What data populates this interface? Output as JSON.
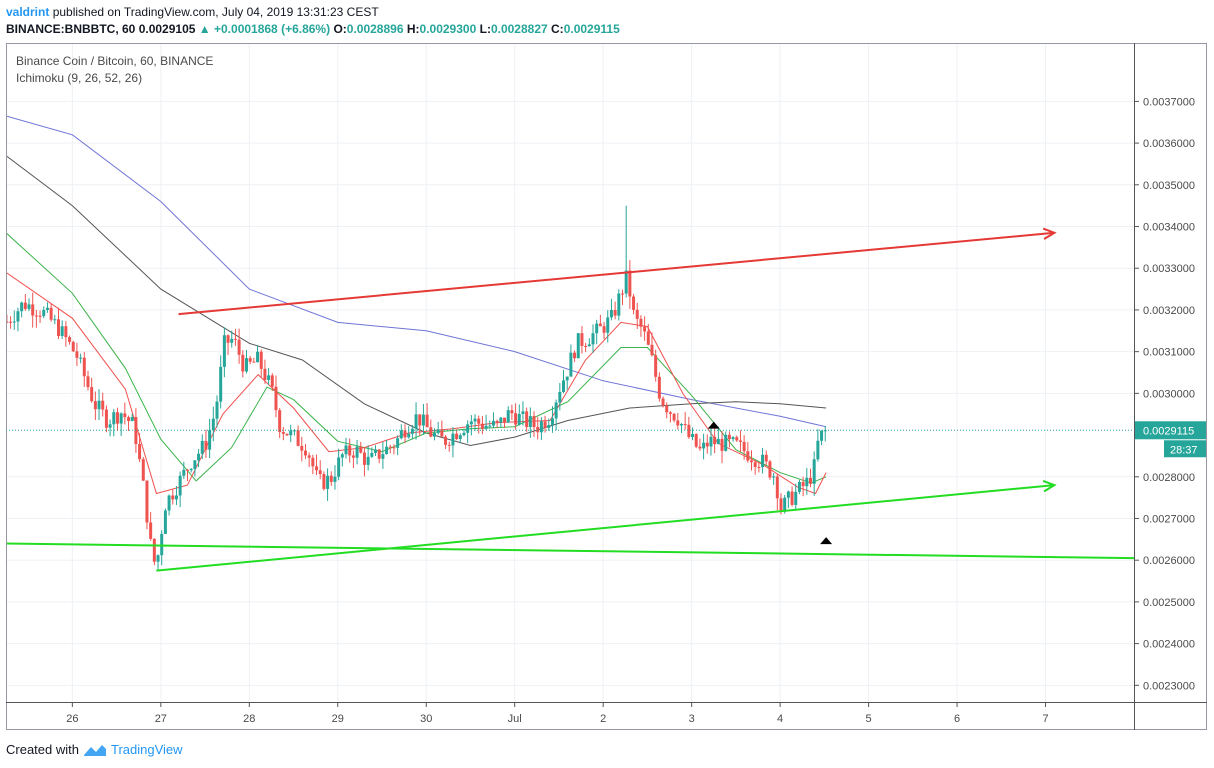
{
  "header": {
    "author": "valdrint",
    "published_text": "published on TradingView.com, July 04, 2019 13:31:23 CEST",
    "symbol": "BINANCE:BNBBTC, 60",
    "last": "0.0029105",
    "change": "+0.0001868 (+6.86%)",
    "o_label": "O:",
    "o_val": "0.0028896",
    "h_label": "H:",
    "h_val": "0.0029300",
    "l_label": "L:",
    "l_val": "0.0028827",
    "c_label": "C:",
    "c_val": "0.0029115"
  },
  "legend": {
    "title": "Binance Coin / Bitcoin, 60, BINANCE",
    "indicator": "Ichimoku (9, 26, 52, 26)"
  },
  "footer": {
    "created_with": "Created with",
    "brand": "TradingView"
  },
  "colors": {
    "up": "#26a69a",
    "down": "#ef5350",
    "red_line": "#e53935",
    "green_line": "#22dd22",
    "ma_blue": "#6f74d6",
    "ma_gray": "#555555",
    "ma_green": "#3bb34a",
    "ma_red": "#f0504e",
    "price_tag": "#26a69a"
  },
  "chart_data": {
    "type": "candlestick",
    "price_label": "0.0029115",
    "countdown": "28:37",
    "y_ticks": [
      "0.0037000",
      "0.0036000",
      "0.0035000",
      "0.0034000",
      "0.0033000",
      "0.0032000",
      "0.0031000",
      "0.0030000",
      "0.0028000",
      "0.0027000",
      "0.0026000",
      "0.0025000",
      "0.0024000",
      "0.0023000"
    ],
    "y_range": [
      0.00226,
      0.00384
    ],
    "x_ticks": [
      {
        "label": "26",
        "day": 0
      },
      {
        "label": "27",
        "day": 1
      },
      {
        "label": "28",
        "day": 2
      },
      {
        "label": "29",
        "day": 3
      },
      {
        "label": "30",
        "day": 4
      },
      {
        "label": "Jul",
        "day": 5
      },
      {
        "label": "2",
        "day": 6
      },
      {
        "label": "3",
        "day": 7
      },
      {
        "label": "4",
        "day": 8
      },
      {
        "label": "5",
        "day": 9
      },
      {
        "label": "6",
        "day": 10
      },
      {
        "label": "7",
        "day": 11
      }
    ],
    "x_range_days": [
      -0.75,
      12.0
    ],
    "closes": [
      [
        -0.74,
        0.003172
      ],
      [
        -0.55,
        0.003216
      ],
      [
        -0.35,
        0.003198
      ],
      [
        -0.15,
        0.003155
      ],
      [
        0.05,
        0.00309
      ],
      [
        0.25,
        0.002975
      ],
      [
        0.4,
        0.002935
      ],
      [
        0.55,
        0.002955
      ],
      [
        0.7,
        0.00292
      ],
      [
        0.82,
        0.00275
      ],
      [
        0.9,
        0.00261
      ],
      [
        0.95,
        0.002585
      ],
      [
        1.05,
        0.002735
      ],
      [
        1.2,
        0.002785
      ],
      [
        1.35,
        0.00284
      ],
      [
        1.5,
        0.002875
      ],
      [
        1.62,
        0.00296
      ],
      [
        1.72,
        0.00312
      ],
      [
        1.82,
        0.00313
      ],
      [
        1.95,
        0.00306
      ],
      [
        2.1,
        0.00308
      ],
      [
        2.25,
        0.00301
      ],
      [
        2.35,
        0.00292
      ],
      [
        2.5,
        0.002895
      ],
      [
        2.65,
        0.00287
      ],
      [
        2.78,
        0.002785
      ],
      [
        2.92,
        0.002795
      ],
      [
        3.05,
        0.00285
      ],
      [
        3.2,
        0.002865
      ],
      [
        3.35,
        0.002835
      ],
      [
        3.5,
        0.00286
      ],
      [
        3.65,
        0.00288
      ],
      [
        3.75,
        0.002915
      ],
      [
        3.9,
        0.002945
      ],
      [
        4.05,
        0.002905
      ],
      [
        4.2,
        0.002885
      ],
      [
        4.35,
        0.00291
      ],
      [
        4.5,
        0.002935
      ],
      [
        4.65,
        0.002925
      ],
      [
        4.8,
        0.00292
      ],
      [
        4.95,
        0.002955
      ],
      [
        5.1,
        0.002935
      ],
      [
        5.25,
        0.00292
      ],
      [
        5.4,
        0.002945
      ],
      [
        5.5,
        0.00301
      ],
      [
        5.6,
        0.00306
      ],
      [
        5.7,
        0.00312
      ],
      [
        5.8,
        0.00313
      ],
      [
        5.95,
        0.00315
      ],
      [
        6.1,
        0.00318
      ],
      [
        6.2,
        0.00324
      ],
      [
        6.27,
        0.00328
      ],
      [
        6.35,
        0.00318
      ],
      [
        6.45,
        0.00315
      ],
      [
        6.55,
        0.00308
      ],
      [
        6.65,
        0.00299
      ],
      [
        6.75,
        0.00296
      ],
      [
        6.85,
        0.00294
      ],
      [
        6.95,
        0.0029
      ],
      [
        7.1,
        0.00286
      ],
      [
        7.2,
        0.002885
      ],
      [
        7.35,
        0.00288
      ],
      [
        7.5,
        0.002875
      ],
      [
        7.65,
        0.002855
      ],
      [
        7.8,
        0.002835
      ],
      [
        7.95,
        0.0028
      ],
      [
        8.0,
        0.00272
      ],
      [
        8.1,
        0.002745
      ],
      [
        8.2,
        0.002765
      ],
      [
        8.3,
        0.002785
      ],
      [
        8.38,
        0.002815
      ],
      [
        8.42,
        0.002875
      ],
      [
        8.48,
        0.002905
      ],
      [
        8.52,
        0.0029115
      ]
    ],
    "moving_averages": [
      {
        "color_key": "ma_blue",
        "points": [
          [
            -0.75,
            0.003665
          ],
          [
            0.0,
            0.00362
          ],
          [
            1.0,
            0.00346
          ],
          [
            2.0,
            0.00325
          ],
          [
            3.0,
            0.00317
          ],
          [
            4.0,
            0.00315
          ],
          [
            5.0,
            0.0031
          ],
          [
            6.0,
            0.00303
          ],
          [
            7.0,
            0.002985
          ],
          [
            8.0,
            0.002945
          ],
          [
            8.52,
            0.00292
          ]
        ]
      },
      {
        "color_key": "ma_gray",
        "points": [
          [
            -0.75,
            0.00357
          ],
          [
            0.0,
            0.00345
          ],
          [
            1.0,
            0.00325
          ],
          [
            2.0,
            0.00312
          ],
          [
            2.6,
            0.00308
          ],
          [
            3.3,
            0.002975
          ],
          [
            4.0,
            0.002905
          ],
          [
            4.5,
            0.002875
          ],
          [
            5.0,
            0.002895
          ],
          [
            5.6,
            0.002935
          ],
          [
            6.3,
            0.002965
          ],
          [
            7.0,
            0.002975
          ],
          [
            7.5,
            0.00298
          ],
          [
            8.0,
            0.002975
          ],
          [
            8.52,
            0.002965
          ]
        ]
      },
      {
        "color_key": "ma_green",
        "points": [
          [
            -0.75,
            0.003385
          ],
          [
            0.0,
            0.00324
          ],
          [
            0.6,
            0.00306
          ],
          [
            1.0,
            0.00289
          ],
          [
            1.4,
            0.00279
          ],
          [
            1.8,
            0.00287
          ],
          [
            2.2,
            0.003015
          ],
          [
            2.5,
            0.002985
          ],
          [
            3.0,
            0.002885
          ],
          [
            3.5,
            0.00286
          ],
          [
            4.0,
            0.002905
          ],
          [
            4.5,
            0.002915
          ],
          [
            5.0,
            0.00292
          ],
          [
            5.6,
            0.00298
          ],
          [
            6.2,
            0.00311
          ],
          [
            6.5,
            0.00311
          ],
          [
            7.0,
            0.002995
          ],
          [
            7.5,
            0.002865
          ],
          [
            8.0,
            0.00281
          ],
          [
            8.35,
            0.002785
          ],
          [
            8.52,
            0.0028
          ]
        ]
      },
      {
        "color_key": "ma_red",
        "points": [
          [
            -0.75,
            0.00329
          ],
          [
            0.0,
            0.00318
          ],
          [
            0.6,
            0.00301
          ],
          [
            0.95,
            0.00276
          ],
          [
            1.3,
            0.00278
          ],
          [
            1.7,
            0.00295
          ],
          [
            2.1,
            0.003045
          ],
          [
            2.5,
            0.002965
          ],
          [
            2.9,
            0.00286
          ],
          [
            3.3,
            0.00287
          ],
          [
            3.8,
            0.002905
          ],
          [
            4.3,
            0.002915
          ],
          [
            4.8,
            0.00293
          ],
          [
            5.4,
            0.002935
          ],
          [
            5.8,
            0.00308
          ],
          [
            6.2,
            0.00317
          ],
          [
            6.5,
            0.00316
          ],
          [
            6.9,
            0.003
          ],
          [
            7.3,
            0.00288
          ],
          [
            7.8,
            0.00283
          ],
          [
            8.2,
            0.002775
          ],
          [
            8.4,
            0.00276
          ],
          [
            8.52,
            0.00281
          ]
        ]
      }
    ],
    "trend_lines": [
      {
        "color_key": "red_line",
        "from": [
          1.2,
          0.00319
        ],
        "to": [
          11.1,
          0.003385
        ],
        "arrow": true
      },
      {
        "color_key": "green_line",
        "from": [
          0.95,
          0.002575
        ],
        "to": [
          11.1,
          0.00278
        ],
        "arrow": true
      },
      {
        "color_key": "green_line",
        "from": [
          -0.75,
          0.00264
        ],
        "to": [
          12.0,
          0.002605
        ],
        "arrow": false
      }
    ],
    "markers": [
      {
        "day": 7.25,
        "value": 0.002925
      },
      {
        "day": 8.52,
        "value": 0.002648
      }
    ]
  }
}
